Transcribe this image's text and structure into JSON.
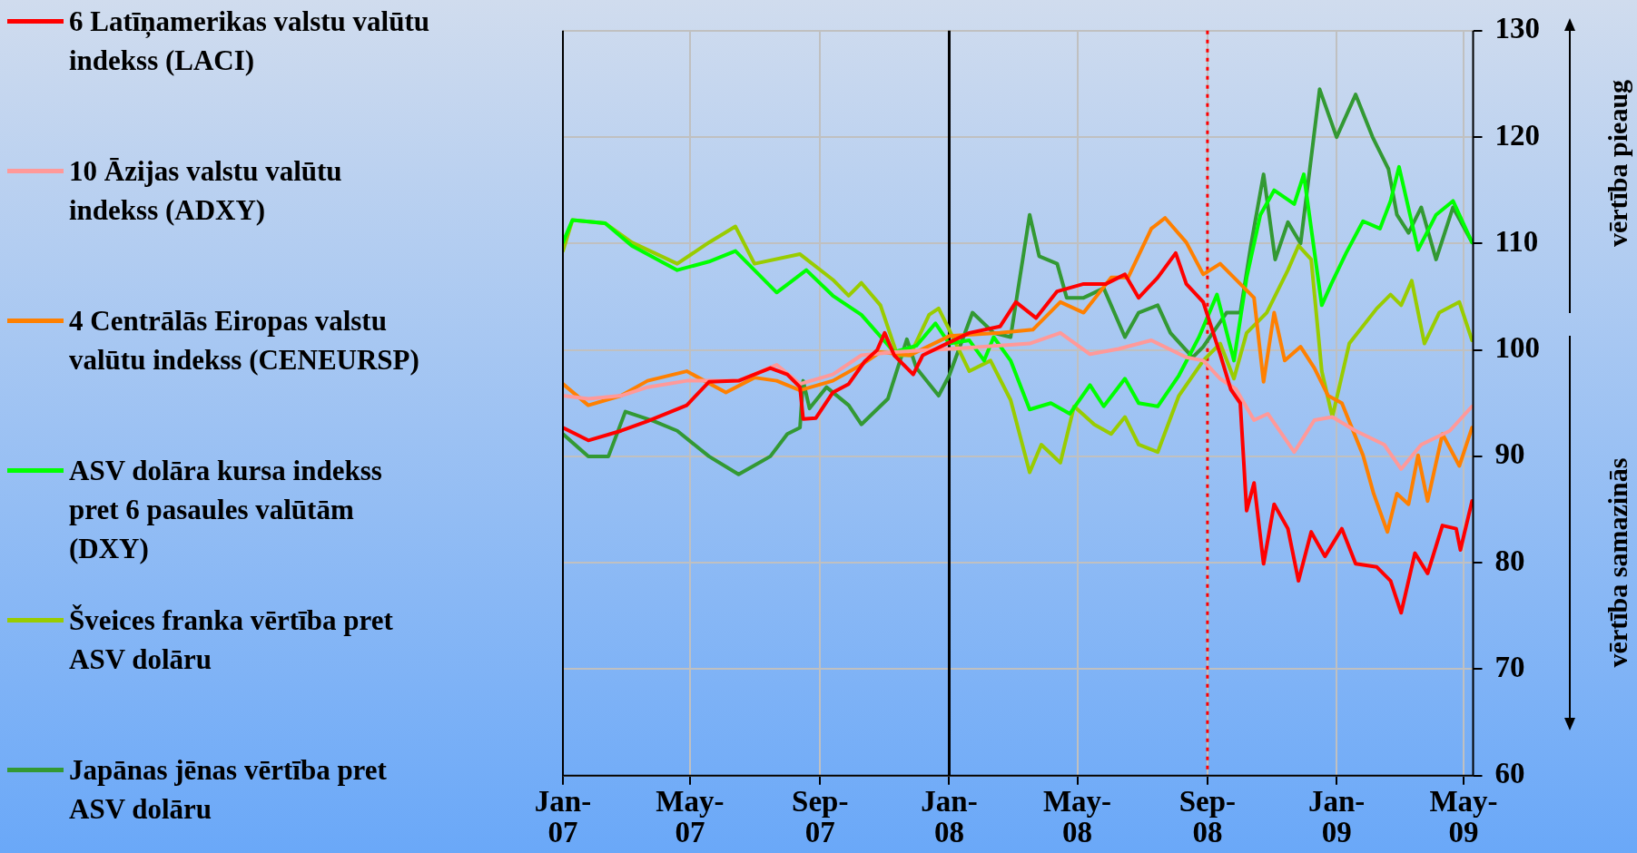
{
  "chart_data": {
    "type": "line",
    "xlim": [
      "2007-01-01",
      "2009-05-10"
    ],
    "ylim": [
      60,
      130
    ],
    "xticks": [
      {
        "value": "2007-01",
        "label": "Jan-07"
      },
      {
        "value": "2007-05",
        "label": "May-07"
      },
      {
        "value": "2007-09",
        "label": "Sep-07"
      },
      {
        "value": "2008-01",
        "label": "Jan-08"
      },
      {
        "value": "2008-05",
        "label": "May-08"
      },
      {
        "value": "2008-09",
        "label": "Sep-08"
      },
      {
        "value": "2009-01",
        "label": "Jan-09"
      },
      {
        "value": "2009-05",
        "label": "May-09"
      }
    ],
    "yticks": [
      60,
      70,
      80,
      90,
      100,
      110,
      120,
      130
    ],
    "grid": true,
    "legend": "left",
    "marker": "none",
    "line_style": "solid",
    "ref_lines": [
      {
        "axis": "x",
        "value": "2008-09",
        "color": "#ff0000",
        "line_style": "dotted"
      },
      {
        "axis": "x",
        "value": "2008-01",
        "color": "#000000",
        "line_style": "solid"
      }
    ],
    "annotations": [
      "vērtība pieaug",
      "vērtība samazinās"
    ],
    "series": [
      {
        "name": "6 Latīņamerikas valstu valūtu indekss (LACI)",
        "color": "#ff0000",
        "x": [
          "2007-01-01",
          "2007-01-25",
          "2007-02-25",
          "2007-03-22",
          "2007-04-28",
          "2007-05-19",
          "2007-06-16",
          "2007-07-16",
          "2007-08-01",
          "2007-08-13",
          "2007-08-16",
          "2007-08-28",
          "2007-09-13",
          "2007-09-28",
          "2007-10-13",
          "2007-10-25",
          "2007-11-01",
          "2007-11-10",
          "2007-11-28",
          "2007-12-07",
          "2008-01-01",
          "2008-01-20",
          "2008-02-18",
          "2008-03-04",
          "2008-03-23",
          "2008-04-12",
          "2008-05-07",
          "2008-05-28",
          "2008-06-15",
          "2008-06-28",
          "2008-07-16",
          "2008-08-02",
          "2008-08-12",
          "2008-08-28",
          "2008-09-13",
          "2008-09-23",
          "2008-10-02",
          "2008-10-08",
          "2008-10-15",
          "2008-10-24",
          "2008-11-03",
          "2008-11-16",
          "2008-11-26",
          "2008-12-08",
          "2008-12-21",
          "2009-01-06",
          "2009-01-19",
          "2009-02-08",
          "2009-02-21",
          "2009-03-03",
          "2009-03-16",
          "2009-03-28",
          "2009-04-11",
          "2009-04-24",
          "2009-04-28",
          "2009-05-09"
        ],
        "values": [
          92.7,
          91.5,
          92.4,
          93.3,
          94.8,
          97,
          97.1,
          98.3,
          97.7,
          96.5,
          93.5,
          93.6,
          96,
          96.8,
          98.9,
          100,
          101.6,
          99.5,
          97.7,
          99.5,
          100.7,
          101.6,
          102.2,
          104.5,
          103,
          105.5,
          106.2,
          106.2,
          107.1,
          104.9,
          106.8,
          109.1,
          106.2,
          104.5,
          99.6,
          96.3,
          95,
          84.9,
          87.5,
          79.9,
          85.5,
          83.2,
          78.3,
          82.9,
          80.6,
          83.2,
          79.9,
          79.6,
          78.3,
          75.3,
          80.9,
          79,
          83.5,
          83.2,
          81.2,
          85.8
        ]
      },
      {
        "name": "10 Āzijas valstu valūtu indekss (ADXY)",
        "color": "#ff9999",
        "x": [
          "2007-01-01",
          "2007-01-25",
          "2007-02-25",
          "2007-03-22",
          "2007-04-28",
          "2007-06-16",
          "2007-07-22",
          "2007-08-13",
          "2007-09-13",
          "2007-10-10",
          "2007-11-10",
          "2008-01-01",
          "2008-02-03",
          "2008-03-17",
          "2008-04-15",
          "2008-05-13",
          "2008-06-09",
          "2008-07-10",
          "2008-08-12",
          "2008-08-28",
          "2008-09-13",
          "2008-09-28",
          "2008-10-15",
          "2008-10-28",
          "2008-11-22",
          "2008-12-11",
          "2008-12-28",
          "2009-01-19",
          "2009-02-15",
          "2009-03-03",
          "2009-03-22",
          "2009-04-18",
          "2009-05-09"
        ],
        "values": [
          95.7,
          95.4,
          95.7,
          96.5,
          97.1,
          97.1,
          98.6,
          96.8,
          97.7,
          99.5,
          99.8,
          100.1,
          100.3,
          100.6,
          101.6,
          99.6,
          100.1,
          100.9,
          99.3,
          99,
          97.3,
          96.3,
          93.4,
          94,
          90.4,
          93.4,
          93.7,
          92.4,
          91.1,
          88.8,
          91.1,
          92.4,
          94.7
        ]
      },
      {
        "name": "4 Centrālās Eiropas valstu valūtu indekss (CENEURSP)",
        "color": "#ff8000",
        "x": [
          "2007-01-01",
          "2007-01-25",
          "2007-02-25",
          "2007-03-22",
          "2007-04-28",
          "2007-06-04",
          "2007-07-01",
          "2007-07-22",
          "2007-08-13",
          "2007-09-13",
          "2007-10-10",
          "2007-10-28",
          "2007-11-25",
          "2008-01-01",
          "2008-02-18",
          "2008-03-20",
          "2008-04-15",
          "2008-05-07",
          "2008-06-02",
          "2008-06-18",
          "2008-07-10",
          "2008-07-23",
          "2008-08-12",
          "2008-08-28",
          "2008-09-13",
          "2008-10-02",
          "2008-10-15",
          "2008-10-24",
          "2008-11-03",
          "2008-11-13",
          "2008-11-28",
          "2008-12-11",
          "2008-12-24",
          "2009-01-06",
          "2009-01-26",
          "2009-02-05",
          "2009-02-18",
          "2009-02-27",
          "2009-03-10",
          "2009-03-19",
          "2009-03-28",
          "2009-04-11",
          "2009-04-27",
          "2009-05-09"
        ],
        "values": [
          96.8,
          94.8,
          95.7,
          97.1,
          98,
          96,
          97.4,
          97.1,
          96.2,
          97.1,
          98.6,
          99.8,
          99.5,
          101.3,
          101.6,
          101.9,
          104.5,
          103.5,
          106.8,
          106.8,
          111.4,
          112.4,
          110.1,
          107.1,
          108.1,
          106.2,
          104.9,
          97,
          103.5,
          99,
          100.3,
          98.3,
          95.7,
          95,
          90.1,
          86.5,
          82.9,
          86.5,
          85.5,
          90.1,
          85.8,
          92.1,
          89.1,
          92.7
        ]
      },
      {
        "name": "ASV dolāra kursa indekss pret 6 pasaules valūtām (DXY)",
        "color": "#00ff00",
        "x": [
          "2007-01-01",
          "2007-01-10",
          "2007-02-10",
          "2007-03-07",
          "2007-04-19",
          "2007-05-19",
          "2007-06-13",
          "2007-07-22",
          "2007-08-19",
          "2007-09-13",
          "2007-10-10",
          "2007-11-10",
          "2007-12-01",
          "2007-12-19",
          "2008-01-01",
          "2008-01-20",
          "2008-02-03",
          "2008-02-12",
          "2008-02-28",
          "2008-03-17",
          "2008-04-06",
          "2008-04-24",
          "2008-05-13",
          "2008-05-26",
          "2008-06-15",
          "2008-06-28",
          "2008-07-16",
          "2008-08-05",
          "2008-08-24",
          "2008-09-10",
          "2008-09-26",
          "2008-10-08",
          "2008-10-21",
          "2008-11-03",
          "2008-11-22",
          "2008-12-01",
          "2008-12-18",
          "2008-12-27",
          "2009-01-10",
          "2009-01-26",
          "2009-02-11",
          "2009-02-21",
          "2009-03-01",
          "2009-03-19",
          "2009-04-05",
          "2009-04-21",
          "2009-05-09"
        ],
        "values": [
          110.1,
          112.2,
          111.9,
          109.8,
          107.5,
          108.3,
          109.3,
          105.4,
          107.5,
          105.1,
          103.3,
          99.8,
          100.4,
          102.5,
          100.6,
          100.9,
          99,
          101.2,
          99,
          94.4,
          95,
          94,
          96.7,
          94.7,
          97.3,
          95,
          94.7,
          97.6,
          101.2,
          105.2,
          99,
          106.8,
          112.7,
          115,
          113.7,
          116.5,
          104.2,
          106.2,
          109.1,
          112.1,
          111.4,
          114,
          117.2,
          109.4,
          112.7,
          114,
          110.1
        ]
      },
      {
        "name": "Šveices franka vērtība pret ASV dolāru",
        "color": "#99cc00",
        "x": [
          "2007-01-01",
          "2007-01-10",
          "2007-02-10",
          "2007-03-07",
          "2007-04-19",
          "2007-05-19",
          "2007-06-13",
          "2007-07-01",
          "2007-08-13",
          "2007-09-13",
          "2007-09-28",
          "2007-10-10",
          "2007-10-28",
          "2007-11-13",
          "2007-11-25",
          "2007-12-13",
          "2007-12-22",
          "2008-01-01",
          "2008-01-20",
          "2008-02-09",
          "2008-02-28",
          "2008-03-17",
          "2008-03-28",
          "2008-04-15",
          "2008-04-28",
          "2008-05-17",
          "2008-06-02",
          "2008-06-15",
          "2008-06-28",
          "2008-07-16",
          "2008-08-05",
          "2008-08-28",
          "2008-09-13",
          "2008-09-26",
          "2008-10-08",
          "2008-10-27",
          "2008-11-16",
          "2008-11-26",
          "2008-12-08",
          "2008-12-18",
          "2008-12-28",
          "2009-01-13",
          "2009-02-08",
          "2009-02-21",
          "2009-03-03",
          "2009-03-13",
          "2009-03-25",
          "2009-04-08",
          "2009-04-27",
          "2009-05-09"
        ],
        "values": [
          109.3,
          112.2,
          111.9,
          110.1,
          108.1,
          110.1,
          111.6,
          108.1,
          109,
          106.6,
          105.1,
          106.3,
          104.2,
          99.5,
          99.5,
          103.3,
          103.9,
          101.9,
          98,
          99,
          95.3,
          88.5,
          91.1,
          89.4,
          94.7,
          93,
          92.1,
          93.7,
          91.1,
          90.4,
          95.7,
          99,
          100.6,
          97.3,
          101.6,
          103.5,
          107.5,
          109.8,
          108.5,
          98,
          93.7,
          100.6,
          103.9,
          105.2,
          104.2,
          106.5,
          100.6,
          103.5,
          104.5,
          100.9
        ]
      },
      {
        "name": "Japānas jēnas vērtība pret ASV dolāru",
        "color": "#339933",
        "x": [
          "2007-01-01",
          "2007-01-25",
          "2007-02-13",
          "2007-03-01",
          "2007-03-28",
          "2007-04-19",
          "2007-05-19",
          "2007-06-16",
          "2007-07-16",
          "2007-08-01",
          "2007-08-13",
          "2007-08-16",
          "2007-08-22",
          "2007-09-07",
          "2007-09-28",
          "2007-10-10",
          "2007-11-04",
          "2007-11-22",
          "2007-12-01",
          "2007-12-22",
          "2008-01-01",
          "2008-01-23",
          "2008-02-12",
          "2008-02-28",
          "2008-03-17",
          "2008-03-26",
          "2008-04-12",
          "2008-04-21",
          "2008-05-07",
          "2008-05-26",
          "2008-06-15",
          "2008-06-28",
          "2008-07-16",
          "2008-07-28",
          "2008-08-18",
          "2008-08-28",
          "2008-09-19",
          "2008-10-02",
          "2008-10-12",
          "2008-10-24",
          "2008-11-04",
          "2008-11-16",
          "2008-11-28",
          "2008-12-16",
          "2009-01-01",
          "2009-01-19",
          "2009-02-04",
          "2009-02-19",
          "2009-02-27",
          "2009-03-10",
          "2009-03-22",
          "2009-04-05",
          "2009-04-21",
          "2009-05-09"
        ],
        "values": [
          92.1,
          90,
          90,
          94.2,
          93.3,
          92.4,
          90,
          88.3,
          90,
          92.1,
          92.7,
          97.1,
          94.5,
          96.5,
          94.8,
          93,
          95.4,
          101,
          98.3,
          95.7,
          97.6,
          103.5,
          101.6,
          101.2,
          112.7,
          108.8,
          108.1,
          104.9,
          104.9,
          105.8,
          101.2,
          103.5,
          104.2,
          101.6,
          99.3,
          100.3,
          103.5,
          103.5,
          109.8,
          116.5,
          108.5,
          112,
          110,
          124.5,
          120,
          124,
          120,
          117,
          112.7,
          111,
          113.4,
          108.5,
          113.4,
          110.1
        ]
      }
    ]
  }
}
